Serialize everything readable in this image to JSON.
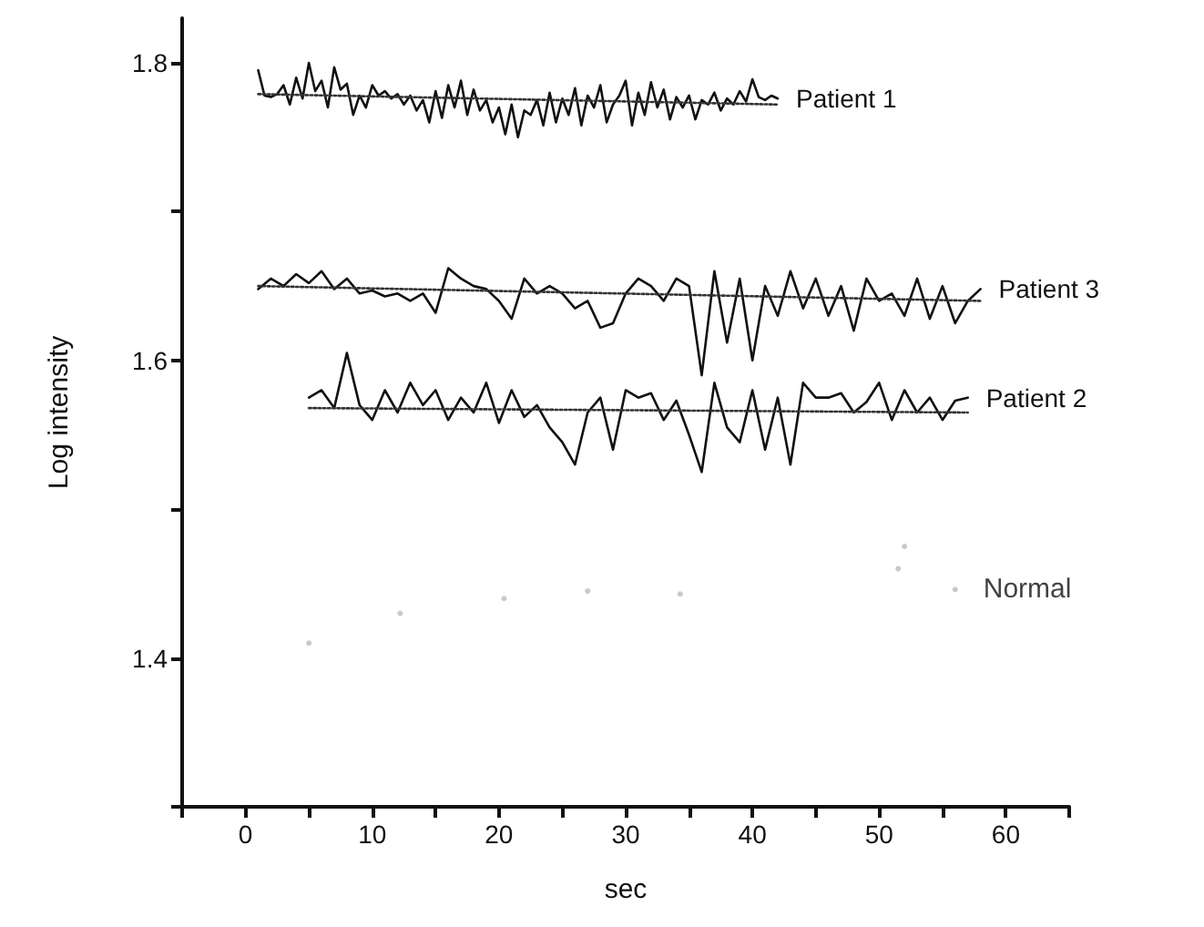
{
  "chart_data": {
    "type": "line",
    "xlabel": "sec",
    "ylabel": "Log intensity",
    "xlim": [
      -5,
      65
    ],
    "ylim": [
      1.3,
      1.83
    ],
    "xticks": [
      {
        "value": -5,
        "label": null
      },
      0,
      {
        "value": 5,
        "label": null
      },
      10,
      {
        "value": 15,
        "label": null
      },
      20,
      {
        "value": 25,
        "label": null
      },
      30,
      {
        "value": 35,
        "label": null
      },
      40,
      {
        "value": 45,
        "label": null
      },
      50,
      {
        "value": 55,
        "label": null
      },
      60,
      {
        "value": 65,
        "label": null
      }
    ],
    "yticks": [
      {
        "value": 1.3,
        "label": null
      },
      1.4,
      {
        "value": 1.5,
        "label": null
      },
      1.6,
      {
        "value": 1.7,
        "label": null
      },
      1.8
    ],
    "grid": false,
    "legend": false,
    "marker": "none",
    "line_style": "solid",
    "series": [
      {
        "name": "Patient 1",
        "color": "#111111",
        "x": [
          1,
          1.5,
          2,
          2.5,
          3,
          3.5,
          4,
          4.5,
          5,
          5.5,
          6,
          6.5,
          7,
          7.5,
          8,
          8.5,
          9,
          9.5,
          10,
          10.5,
          11,
          11.5,
          12,
          12.5,
          13,
          13.5,
          14,
          14.5,
          15,
          15.5,
          16,
          16.5,
          17,
          17.5,
          18,
          18.5,
          19,
          19.5,
          20,
          20.5,
          21,
          21.5,
          22,
          22.5,
          23,
          23.5,
          24,
          24.5,
          25,
          25.5,
          26,
          26.5,
          27,
          27.5,
          28,
          28.5,
          29,
          29.5,
          30,
          30.5,
          31,
          31.5,
          32,
          32.5,
          33,
          33.5,
          34,
          34.5,
          35,
          35.5,
          36,
          36.5,
          37,
          37.5,
          38,
          38.5,
          39,
          39.5,
          40,
          40.5,
          41,
          41.5,
          42
        ],
        "values": [
          1.795,
          1.778,
          1.777,
          1.779,
          1.785,
          1.772,
          1.79,
          1.776,
          1.8,
          1.781,
          1.788,
          1.77,
          1.797,
          1.782,
          1.786,
          1.765,
          1.778,
          1.77,
          1.785,
          1.778,
          1.781,
          1.776,
          1.779,
          1.772,
          1.778,
          1.768,
          1.775,
          1.76,
          1.781,
          1.763,
          1.785,
          1.77,
          1.788,
          1.765,
          1.782,
          1.768,
          1.775,
          1.76,
          1.77,
          1.752,
          1.772,
          1.75,
          1.768,
          1.765,
          1.775,
          1.758,
          1.78,
          1.76,
          1.776,
          1.765,
          1.783,
          1.758,
          1.778,
          1.77,
          1.785,
          1.76,
          1.772,
          1.778,
          1.788,
          1.758,
          1.78,
          1.765,
          1.787,
          1.77,
          1.782,
          1.762,
          1.777,
          1.77,
          1.778,
          1.762,
          1.775,
          1.772,
          1.78,
          1.768,
          1.776,
          1.772,
          1.781,
          1.774,
          1.789,
          1.777,
          1.775,
          1.778,
          1.776
        ]
      },
      {
        "name": "Patient 3",
        "color": "#111111",
        "x": [
          1,
          2,
          3,
          4,
          5,
          6,
          7,
          8,
          9,
          10,
          11,
          12,
          13,
          14,
          15,
          16,
          17,
          18,
          19,
          20,
          21,
          22,
          23,
          24,
          25,
          26,
          27,
          28,
          29,
          30,
          31,
          32,
          33,
          34,
          35,
          36,
          37,
          38,
          39,
          40,
          41,
          42,
          43,
          44,
          45,
          46,
          47,
          48,
          49,
          50,
          51,
          52,
          53,
          54,
          55,
          56,
          57,
          58
        ],
        "values": [
          1.648,
          1.655,
          1.65,
          1.658,
          1.652,
          1.66,
          1.648,
          1.655,
          1.645,
          1.647,
          1.643,
          1.645,
          1.64,
          1.645,
          1.632,
          1.662,
          1.655,
          1.65,
          1.648,
          1.64,
          1.628,
          1.655,
          1.645,
          1.65,
          1.645,
          1.635,
          1.64,
          1.622,
          1.625,
          1.645,
          1.655,
          1.65,
          1.64,
          1.655,
          1.65,
          1.59,
          1.66,
          1.612,
          1.655,
          1.6,
          1.65,
          1.63,
          1.66,
          1.635,
          1.655,
          1.63,
          1.65,
          1.62,
          1.655,
          1.64,
          1.645,
          1.63,
          1.655,
          1.628,
          1.65,
          1.625,
          1.64,
          1.648
        ]
      },
      {
        "name": "Patient 2",
        "color": "#111111",
        "x": [
          5,
          6,
          7,
          8,
          9,
          10,
          11,
          12,
          13,
          14,
          15,
          16,
          17,
          18,
          19,
          20,
          21,
          22,
          23,
          24,
          25,
          26,
          27,
          28,
          29,
          30,
          31,
          32,
          33,
          34,
          35,
          36,
          37,
          38,
          39,
          40,
          41,
          42,
          43,
          44,
          45,
          46,
          47,
          48,
          49,
          50,
          51,
          52,
          53,
          54,
          55,
          56,
          57
        ],
        "values": [
          1.575,
          1.58,
          1.568,
          1.605,
          1.57,
          1.56,
          1.58,
          1.565,
          1.585,
          1.57,
          1.58,
          1.56,
          1.575,
          1.565,
          1.585,
          1.558,
          1.58,
          1.562,
          1.57,
          1.555,
          1.545,
          1.53,
          1.565,
          1.575,
          1.54,
          1.58,
          1.575,
          1.578,
          1.56,
          1.573,
          1.55,
          1.525,
          1.585,
          1.555,
          1.545,
          1.58,
          1.54,
          1.575,
          1.53,
          1.585,
          1.575,
          1.575,
          1.578,
          1.565,
          1.572,
          1.585,
          1.56,
          1.58,
          1.565,
          1.575,
          1.56,
          1.573,
          1.575
        ]
      },
      {
        "name": "Normal",
        "type": "scatter",
        "marker": "circle",
        "color": "#bbbbbb",
        "x": [
          5,
          12.2,
          20.4,
          27,
          34.3,
          51.5,
          52,
          56
        ],
        "values": [
          1.41,
          1.43,
          1.44,
          1.445,
          1.443,
          1.46,
          1.475,
          1.446
        ]
      },
      {
        "color": "#333333",
        "line_style": "dotted",
        "x": [
          1,
          42
        ],
        "values": [
          1.779,
          1.772
        ]
      },
      {
        "color": "#333333",
        "line_style": "dotted",
        "x": [
          1,
          58
        ],
        "values": [
          1.65,
          1.64
        ]
      },
      {
        "color": "#333333",
        "line_style": "dotted",
        "x": [
          5,
          57
        ],
        "values": [
          1.568,
          1.565
        ]
      }
    ]
  }
}
